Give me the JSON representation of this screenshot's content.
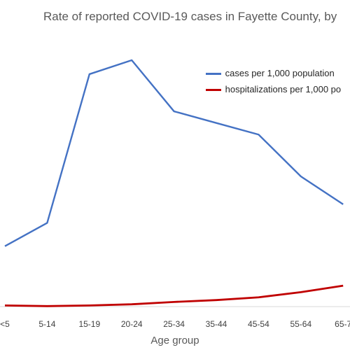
{
  "chart_data": {
    "type": "line",
    "title": "Rate of reported COVID-19 cases in Fayette County, by",
    "xlabel": "Age group",
    "ylabel": "",
    "categories": [
      "<5",
      "5-14",
      "15-19",
      "20-24",
      "25-34",
      "35-44",
      "45-54",
      "55-64",
      "65-7"
    ],
    "ylim": [
      0,
      110
    ],
    "grid": false,
    "legend_position": "top-right",
    "series": [
      {
        "name": "cases per 1,000 population",
        "color": "#4472C4",
        "values": [
          26,
          36,
          100,
          106,
          84,
          79,
          74,
          56,
          44
        ]
      },
      {
        "name": "hospitalizations per 1,000 po",
        "color": "#C00000",
        "values": [
          0.5,
          0.2,
          0.5,
          1.0,
          2.0,
          2.8,
          4.0,
          6.2,
          9.0
        ]
      }
    ]
  }
}
